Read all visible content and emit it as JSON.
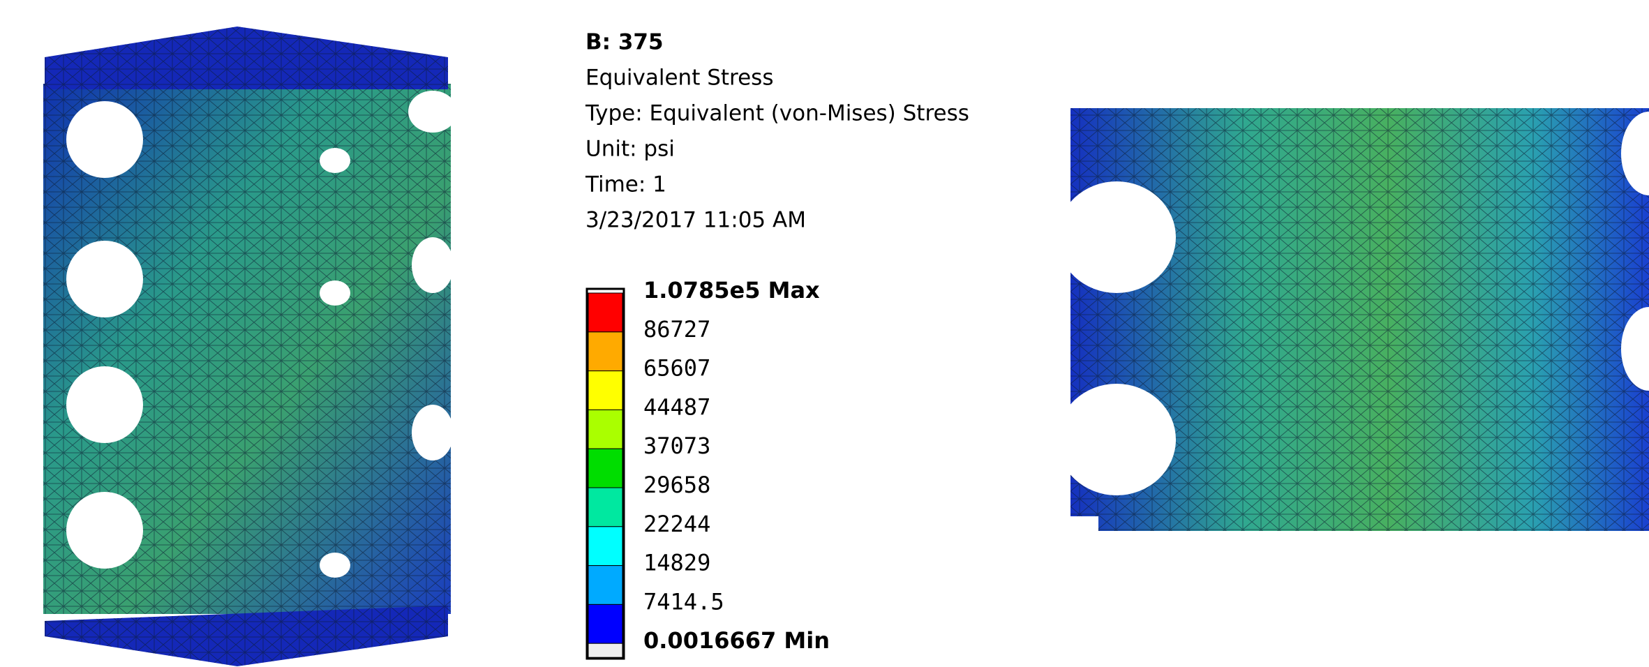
{
  "header": {
    "lines": [
      "B: 375",
      "Equivalent Stress",
      "Type: Equivalent (von-Mises) Stress",
      "Unit: psi",
      "Time: 1",
      "3/23/2017 11:05 AM"
    ]
  },
  "legend": {
    "labels": [
      "1.0785e5 Max",
      "86727",
      "65607",
      "44487",
      "37073",
      "29658",
      "22244",
      "14829",
      "7414.5",
      "0.0016667 Min"
    ],
    "colors": [
      "#ff0000",
      "#ffaa00",
      "#ffff00",
      "#aaff00",
      "#00dd00",
      "#00e8a0",
      "#00ffff",
      "#00aaff",
      "#0000ff",
      "#eeeeee"
    ]
  }
}
